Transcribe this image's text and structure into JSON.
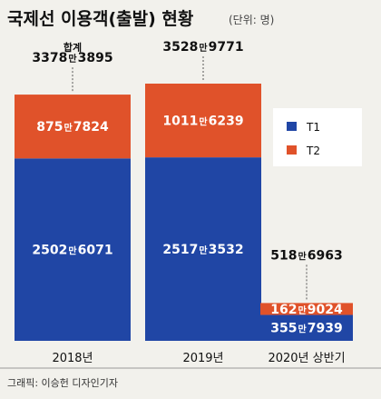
{
  "title": "국제선 이용객(출발) 현황",
  "unit_note": "(단위: 명)",
  "credit": "그래픽: 이승헌 디자인기자",
  "colors": {
    "T1": "#2046a5",
    "T2": "#e0522a",
    "background": "#f2f1ec"
  },
  "chart_data": {
    "type": "bar",
    "stacked": true,
    "categories": [
      "2018년",
      "2019년",
      "2020년 상반기"
    ],
    "series": [
      {
        "name": "T1",
        "values": [
          25026071,
          25173532,
          3557939
        ],
        "labels": [
          [
            "2502",
            "만",
            "6071"
          ],
          [
            "2517",
            "만",
            "3532"
          ],
          [
            "355",
            "만",
            "7939"
          ]
        ]
      },
      {
        "name": "T2",
        "values": [
          8757824,
          10116239,
          1629024
        ],
        "labels": [
          [
            "875",
            "만",
            "7824"
          ],
          [
            "1011",
            "만",
            "6239"
          ],
          [
            "162",
            "만",
            "9024"
          ]
        ]
      }
    ],
    "totals": [
      33783895,
      35289771,
      5186963
    ],
    "total_labels": [
      [
        "3378",
        "만",
        "3895"
      ],
      [
        "3528",
        "만",
        "9771"
      ],
      [
        "518",
        "만",
        "6963"
      ]
    ],
    "total_caption": "합계",
    "legend": [
      "T1",
      "T2"
    ],
    "legend_position": "right",
    "ylim": [
      0,
      35289771
    ],
    "grid": false
  }
}
